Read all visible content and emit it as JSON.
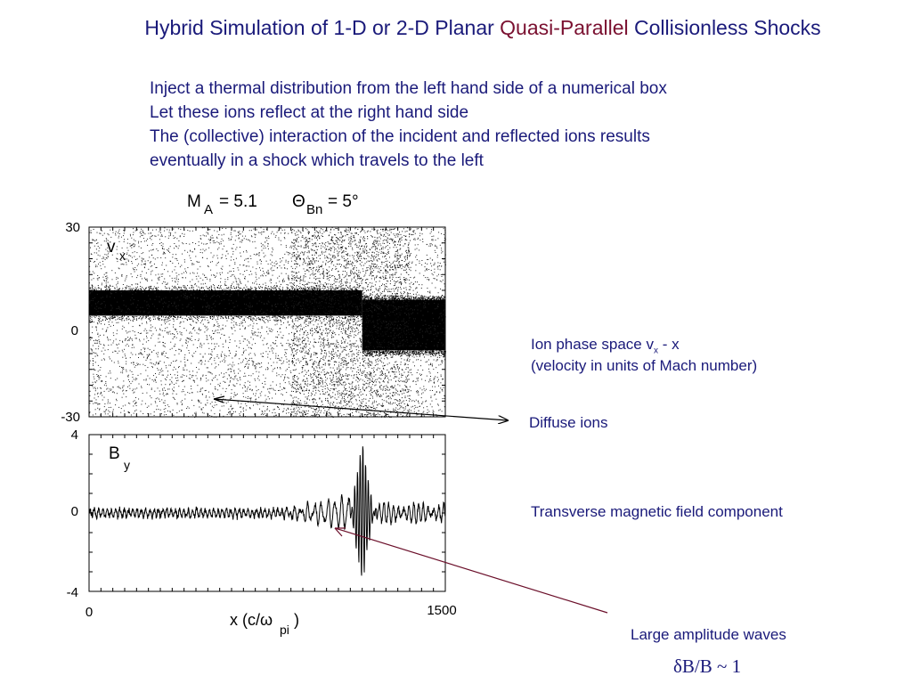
{
  "slide": {
    "title_prefix": "Hybrid Simulation of 1-D or 2-D Planar ",
    "title_highlight": "Quasi-Parallel",
    "title_suffix": " Collisionless Shocks",
    "intro_lines": [
      "Inject a thermal distribution from the left hand side of a numerical box",
      "Let these ions reflect at the right hand side",
      "The (collective) interaction of the incident and reflected ions results",
      "eventually in a shock which travels to the left"
    ]
  },
  "figure": {
    "header_ma_label": "M",
    "header_ma_sub": "A",
    "header_ma_value": "= 5.1",
    "header_theta_label": "Θ",
    "header_theta_sub": "Bn",
    "header_theta_value": "= 5°",
    "top_panel": {
      "var_label": "v",
      "var_sub": "x",
      "y_ticks": [
        "30",
        "0",
        "-30"
      ]
    },
    "bottom_panel": {
      "var_label": "B",
      "var_sub": "y",
      "y_ticks": [
        "4",
        "0",
        "-4"
      ]
    },
    "x_ticks": [
      "0",
      "1500"
    ],
    "x_label_main": "x (c/ω",
    "x_label_sub": "pi",
    "x_label_end": " )"
  },
  "annotations": {
    "phase_space_line1_pre": "Ion phase space v",
    "phase_space_line1_sub": "x",
    "phase_space_line1_post": " - x",
    "phase_space_line2": "(velocity in units of Mach number)",
    "diffuse_ions": "Diffuse ions",
    "transverse_field": "Transverse magnetic field component",
    "large_waves": "Large amplitude waves",
    "ratio": "δB/B ~ 1"
  },
  "chart_data": [
    {
      "type": "scatter",
      "title": "",
      "xlabel": "x (c/ω_pi)",
      "ylabel": "v_x",
      "xlim": [
        0,
        1500
      ],
      "ylim": [
        -30,
        30
      ],
      "y_ticks": [
        30,
        0,
        -30
      ],
      "x_ticks": [
        0,
        1500
      ],
      "bands": [
        {
          "x_range": [
            0,
            1150
          ],
          "v_center": 6,
          "v_halfwidth": 4
        },
        {
          "x_range": [
            1150,
            1500
          ],
          "v_center": -1,
          "v_halfwidth": 8
        }
      ],
      "shock_x": 1150,
      "diffuse_v_range": [
        -30,
        30
      ]
    },
    {
      "type": "line",
      "title": "",
      "xlabel": "x (c/ω_pi)",
      "ylabel": "B_y",
      "xlim": [
        0,
        1500
      ],
      "ylim": [
        -4,
        4
      ],
      "y_ticks": [
        4,
        0,
        -4
      ],
      "x_ticks": [
        0,
        1500
      ],
      "background_amplitude": 0.3,
      "upstream_waves_x_range": [
        800,
        1100
      ],
      "upstream_waves_amplitude": 0.8,
      "shock_x": 1150,
      "peak_max": 3.4,
      "peak_min": -3.5,
      "downstream_amplitude": 0.5
    }
  ]
}
